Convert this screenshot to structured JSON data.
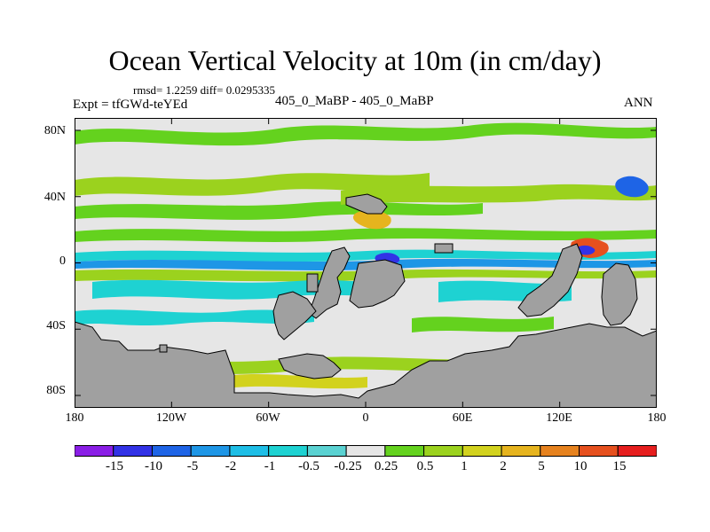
{
  "title": "Ocean Vertical Velocity at 10m (in cm/day)",
  "stats": "rmsd= 1.2259 diff= 0.0295335",
  "expt": "Expt = tfGWd-teYEd",
  "center_label": "405_0_MaBP - 405_0_MaBP",
  "season": "ANN",
  "y_ticks": [
    "80N",
    "40N",
    "0",
    "40S",
    "80S"
  ],
  "x_ticks": [
    "180",
    "120W",
    "60W",
    "0",
    "60E",
    "120E",
    "180"
  ],
  "colorbar": {
    "labels": [
      "-15",
      "-10",
      "-5",
      "-2",
      "-1",
      "-0.5",
      "-0.25",
      "0.25",
      "0.5",
      "1",
      "2",
      "5",
      "10",
      "15"
    ],
    "colors": [
      "#8a1ee6",
      "#3232e6",
      "#1e64e6",
      "#1e96e6",
      "#1ebee6",
      "#1ed2d2",
      "#5ad2d2",
      "#e6e6e6",
      "#64d21e",
      "#9bd21e",
      "#d2d21e",
      "#e6b41e",
      "#e6821e",
      "#e6501e",
      "#e61e1e"
    ]
  },
  "colors": {
    "land": "#a0a0a0",
    "zero_band": "#e6e6e6",
    "positive_band": "#9bd21e",
    "negative_band": "#1ed2d2"
  }
}
